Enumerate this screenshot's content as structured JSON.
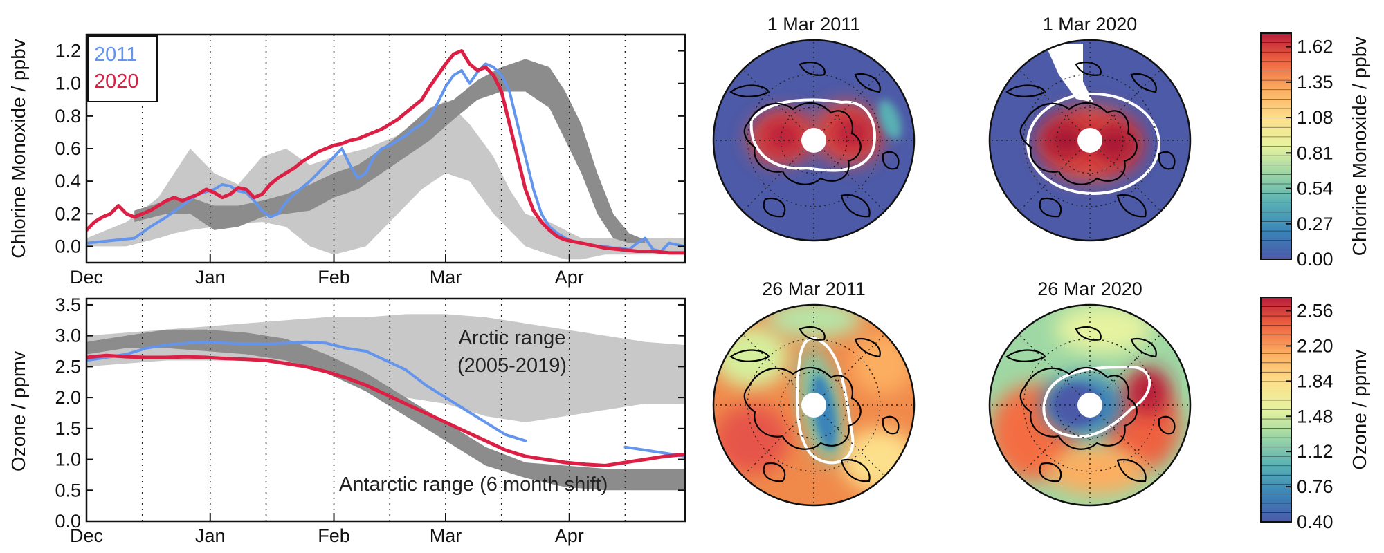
{
  "chart_data": [
    {
      "type": "line",
      "ylabel": "Chlorine Monoxide / ppbv",
      "xlim": [
        0,
        150
      ],
      "ylim": [
        -0.1,
        1.3
      ],
      "yticks": [
        0.0,
        0.2,
        0.4,
        0.6,
        0.8,
        1.0,
        1.2
      ],
      "ytick_labels": [
        "0.0",
        "0.2",
        "0.4",
        "0.6",
        "0.8",
        "1.0",
        "1.2"
      ],
      "month_ticks": [
        {
          "x": 0,
          "label": "Dec"
        },
        {
          "x": 31,
          "label": "Jan"
        },
        {
          "x": 62,
          "label": "Feb"
        },
        {
          "x": 90,
          "label": "Mar"
        },
        {
          "x": 121,
          "label": "Apr"
        }
      ],
      "minor_gridlines": [
        14,
        45,
        76,
        104,
        135
      ],
      "legend": {
        "placement": "top-left",
        "entries": [
          "2011",
          "2020"
        ]
      },
      "bands": [
        {
          "name": "Arctic range (2005-2019)",
          "color": "#c8c8c8",
          "x": [
            0,
            10,
            18,
            22,
            26,
            32,
            38,
            44,
            50,
            56,
            62,
            70,
            78,
            84,
            90,
            96,
            102,
            106,
            110,
            116,
            120,
            124,
            130,
            136,
            140,
            150
          ],
          "lower": [
            0.0,
            0.0,
            0.05,
            0.08,
            0.1,
            0.12,
            0.14,
            0.15,
            0.12,
            0.0,
            -0.05,
            0.0,
            0.2,
            0.35,
            0.45,
            0.4,
            0.2,
            0.1,
            0.0,
            -0.05,
            -0.08,
            -0.08,
            -0.05,
            -0.05,
            -0.05,
            -0.05
          ],
          "upper": [
            0.05,
            0.15,
            0.3,
            0.45,
            0.6,
            0.45,
            0.38,
            0.55,
            0.6,
            0.5,
            0.55,
            0.6,
            0.68,
            0.78,
            0.9,
            0.75,
            0.55,
            0.35,
            0.2,
            0.15,
            0.1,
            0.05,
            0.05,
            0.05,
            0.05,
            0.05
          ]
        },
        {
          "name": "Antarctic range (6 month shift)",
          "color": "#8c8c8c",
          "x": [
            12,
            20,
            26,
            32,
            38,
            44,
            50,
            56,
            62,
            68,
            74,
            80,
            86,
            92,
            98,
            104,
            110,
            116,
            120,
            124,
            128,
            132,
            136,
            140
          ],
          "lower": [
            0.15,
            0.2,
            0.2,
            0.1,
            0.12,
            0.18,
            0.2,
            0.22,
            0.3,
            0.35,
            0.45,
            0.55,
            0.65,
            0.78,
            0.9,
            0.95,
            0.95,
            0.85,
            0.65,
            0.45,
            0.2,
            0.05,
            0.02,
            0.02
          ],
          "upper": [
            0.22,
            0.28,
            0.3,
            0.25,
            0.25,
            0.28,
            0.32,
            0.38,
            0.45,
            0.5,
            0.6,
            0.72,
            0.85,
            0.9,
            1.02,
            1.1,
            1.15,
            1.1,
            0.95,
            0.75,
            0.45,
            0.2,
            0.08,
            0.04
          ]
        }
      ],
      "series": [
        {
          "name": "2011",
          "color": "#6495ed",
          "x": [
            0,
            4,
            8,
            12,
            16,
            20,
            24,
            28,
            32,
            34,
            36,
            38,
            40,
            42,
            44,
            46,
            48,
            50,
            52,
            54,
            56,
            58,
            60,
            62,
            64,
            66,
            68,
            70,
            72,
            74,
            76,
            78,
            80,
            82,
            84,
            86,
            88,
            90,
            92,
            94,
            96,
            98,
            100,
            102,
            104,
            106,
            108,
            110,
            112,
            114,
            116,
            118,
            120,
            122,
            124,
            126,
            128,
            130,
            132,
            134,
            136,
            138,
            140,
            142,
            144,
            146,
            148,
            150
          ],
          "y": [
            0.02,
            0.03,
            0.04,
            0.05,
            0.12,
            0.18,
            0.25,
            0.32,
            0.35,
            0.38,
            0.37,
            0.34,
            0.33,
            0.28,
            0.22,
            0.18,
            0.2,
            0.27,
            0.32,
            0.36,
            0.4,
            0.45,
            0.5,
            0.55,
            0.6,
            0.5,
            0.42,
            0.45,
            0.55,
            0.6,
            0.62,
            0.65,
            0.68,
            0.72,
            0.75,
            0.8,
            0.88,
            0.98,
            1.05,
            1.08,
            1.0,
            1.07,
            1.12,
            1.1,
            1.05,
            0.95,
            0.75,
            0.55,
            0.35,
            0.2,
            0.12,
            0.08,
            0.05,
            0.03,
            0.02,
            0.01,
            0.0,
            0.0,
            -0.01,
            -0.01,
            -0.02,
            0.02,
            0.05,
            -0.02,
            -0.03,
            0.02,
            0.01,
            0.0
          ]
        },
        {
          "name": "2020",
          "color": "#dc1f44",
          "x": [
            0,
            2,
            4,
            6,
            8,
            10,
            12,
            14,
            16,
            18,
            20,
            22,
            24,
            26,
            28,
            30,
            32,
            34,
            36,
            38,
            40,
            42,
            44,
            46,
            48,
            50,
            52,
            54,
            56,
            58,
            60,
            62,
            64,
            66,
            68,
            70,
            72,
            74,
            76,
            78,
            80,
            82,
            84,
            86,
            88,
            90,
            92,
            94,
            96,
            98,
            100,
            102,
            104,
            106,
            108,
            110,
            112,
            114,
            116,
            118,
            120,
            122,
            124,
            126,
            128,
            130,
            134,
            138,
            142,
            146,
            150
          ],
          "y": [
            0.1,
            0.15,
            0.18,
            0.2,
            0.25,
            0.2,
            0.18,
            0.2,
            0.22,
            0.25,
            0.28,
            0.3,
            0.28,
            0.3,
            0.32,
            0.35,
            0.33,
            0.3,
            0.32,
            0.36,
            0.35,
            0.3,
            0.32,
            0.38,
            0.42,
            0.45,
            0.48,
            0.52,
            0.55,
            0.58,
            0.6,
            0.62,
            0.63,
            0.65,
            0.66,
            0.68,
            0.7,
            0.72,
            0.75,
            0.78,
            0.82,
            0.86,
            0.9,
            0.98,
            1.05,
            1.12,
            1.18,
            1.2,
            1.12,
            1.08,
            1.1,
            1.05,
            0.95,
            0.75,
            0.55,
            0.35,
            0.22,
            0.15,
            0.1,
            0.06,
            0.04,
            0.03,
            0.02,
            0.01,
            0.0,
            -0.01,
            -0.02,
            -0.03,
            -0.03,
            -0.04,
            -0.04
          ]
        }
      ]
    },
    {
      "type": "line",
      "ylabel": "Ozone / ppmv",
      "xlim": [
        0,
        150
      ],
      "ylim": [
        0.0,
        3.6
      ],
      "yticks": [
        0.0,
        0.5,
        1.0,
        1.5,
        2.0,
        2.5,
        3.0,
        3.5
      ],
      "ytick_labels": [
        "0.0",
        "0.5",
        "1.0",
        "1.5",
        "2.0",
        "2.5",
        "3.0",
        "3.5"
      ],
      "month_ticks": [
        {
          "x": 0,
          "label": "Dec"
        },
        {
          "x": 31,
          "label": "Jan"
        },
        {
          "x": 62,
          "label": "Feb"
        },
        {
          "x": 90,
          "label": "Mar"
        },
        {
          "x": 121,
          "label": "Apr"
        }
      ],
      "minor_gridlines": [
        14,
        45,
        76,
        104,
        135
      ],
      "annotations": [
        "Arctic range\n(2005-2019)",
        "Antarctic range (6 month shift)"
      ],
      "bands": [
        {
          "name": "Arctic range (2005-2019)",
          "color": "#c8c8c8",
          "x": [
            0,
            10,
            20,
            30,
            40,
            50,
            60,
            70,
            80,
            90,
            100,
            110,
            120,
            130,
            140,
            150
          ],
          "lower": [
            2.5,
            2.55,
            2.6,
            2.6,
            2.6,
            2.55,
            2.4,
            2.2,
            2.0,
            1.9,
            1.7,
            1.6,
            1.7,
            1.8,
            1.9,
            1.9
          ],
          "upper": [
            3.0,
            3.05,
            3.1,
            3.15,
            3.2,
            3.25,
            3.3,
            3.3,
            3.35,
            3.35,
            3.3,
            3.2,
            3.1,
            3.0,
            2.9,
            2.85
          ]
        },
        {
          "name": "Antarctic range (6 month shift)",
          "color": "#8c8c8c",
          "x": [
            0,
            10,
            20,
            30,
            40,
            50,
            60,
            70,
            80,
            90,
            100,
            110,
            120,
            130,
            140,
            150
          ],
          "lower": [
            2.7,
            2.8,
            2.8,
            2.75,
            2.7,
            2.6,
            2.4,
            2.1,
            1.7,
            1.3,
            0.9,
            0.7,
            0.55,
            0.5,
            0.5,
            0.5
          ],
          "upper": [
            2.9,
            3.0,
            3.1,
            3.1,
            3.05,
            2.95,
            2.7,
            2.4,
            2.0,
            1.6,
            1.2,
            0.95,
            0.9,
            0.85,
            0.85,
            0.85
          ]
        }
      ],
      "series": [
        {
          "name": "2011",
          "color": "#6495ed",
          "x": [
            0,
            5,
            10,
            15,
            20,
            25,
            30,
            35,
            40,
            45,
            50,
            55,
            60,
            65,
            70,
            75,
            80,
            85,
            90,
            95,
            100,
            105,
            110,
            null,
            135,
            140,
            145,
            150
          ],
          "y": [
            2.6,
            2.65,
            2.7,
            2.8,
            2.85,
            2.88,
            2.9,
            2.88,
            2.87,
            2.87,
            2.88,
            2.9,
            2.88,
            2.8,
            2.75,
            2.6,
            2.45,
            2.2,
            2.0,
            1.8,
            1.6,
            1.4,
            1.3,
            null,
            1.2,
            1.15,
            1.1,
            1.05
          ]
        },
        {
          "name": "2020",
          "color": "#dc1f44",
          "x": [
            0,
            5,
            10,
            15,
            20,
            25,
            30,
            35,
            40,
            45,
            50,
            55,
            60,
            65,
            70,
            75,
            80,
            85,
            90,
            95,
            100,
            105,
            110,
            115,
            120,
            125,
            130,
            135,
            140,
            145,
            150
          ],
          "y": [
            2.65,
            2.68,
            2.66,
            2.65,
            2.65,
            2.66,
            2.65,
            2.63,
            2.62,
            2.6,
            2.55,
            2.5,
            2.42,
            2.32,
            2.2,
            2.05,
            1.9,
            1.75,
            1.6,
            1.45,
            1.3,
            1.15,
            1.05,
            1.0,
            0.95,
            0.92,
            0.9,
            0.95,
            1.0,
            1.05,
            1.08
          ]
        }
      ]
    },
    {
      "type": "heatmap",
      "maps": [
        {
          "title": "1 Mar 2011",
          "quantity": "Chlorine Monoxide",
          "pattern": "cl_2011"
        },
        {
          "title": "1 Mar 2020",
          "quantity": "Chlorine Monoxide",
          "pattern": "cl_2020"
        },
        {
          "title": "26 Mar 2011",
          "quantity": "Ozone",
          "pattern": "o3_2011"
        },
        {
          "title": "26 Mar 2020",
          "quantity": "Ozone",
          "pattern": "o3_2020"
        }
      ],
      "colorbars": [
        {
          "label": "Chlorine Monoxide / ppbv",
          "tick_labels": [
            "1.62",
            "1.35",
            "1.08",
            "0.81",
            "0.54",
            "0.27",
            "0.00"
          ]
        },
        {
          "label": "Ozone / ppmv",
          "tick_labels": [
            "2.56",
            "2.20",
            "1.84",
            "1.48",
            "1.12",
            "0.76",
            "0.40"
          ]
        }
      ],
      "colormap": [
        "#313695",
        "#4575b4",
        "#74add1",
        "#abd9e9",
        "#e0f3f8",
        "#ffffbf",
        "#fee090",
        "#fdae61",
        "#f46d43",
        "#d73027",
        "#a50026"
      ]
    }
  ]
}
